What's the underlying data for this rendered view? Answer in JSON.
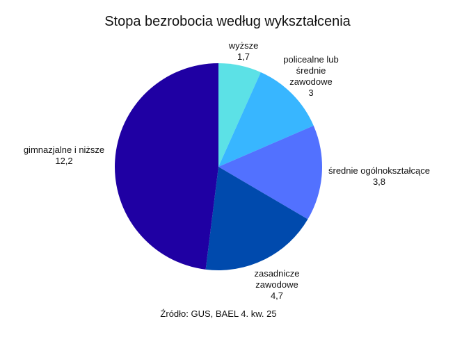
{
  "chart_data": {
    "type": "pie",
    "title": "Stopa bezrobocia według wykształcenia",
    "categories": [
      "wyższe",
      "policealne lub średnie zawodowe",
      "średnie ogólnokształcące",
      "zasadnicze zawodowe",
      "gimnazjalne i niższe"
    ],
    "values": [
      1.7,
      3,
      3.8,
      4.7,
      12.2
    ],
    "value_labels": [
      "1,7",
      "3",
      "3,8",
      "4,7",
      "12,2"
    ],
    "colors": [
      "#5ce1e6",
      "#38b6ff",
      "#5271ff",
      "#004aad",
      "#1f00a3"
    ],
    "source": "Źródło: GUS, BAEL 4. kw. 25"
  }
}
